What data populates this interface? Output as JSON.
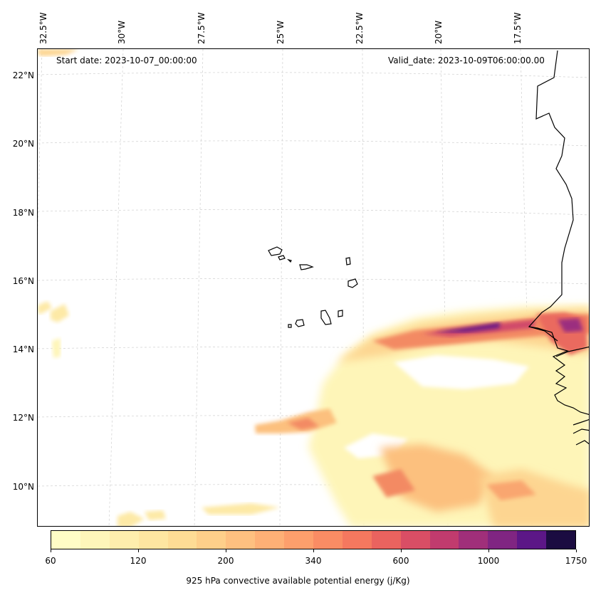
{
  "map": {
    "start_date": "Start date: 2023-10-07_00:00:00",
    "valid_date": "Valid_date: 2023-10-09T06:00:00.00",
    "lon_labels": [
      "32.5°W",
      "30°W",
      "27.5°W",
      "25°W",
      "22.5°W",
      "20°W",
      "17.5°W"
    ],
    "lat_labels": [
      "22°N",
      "20°N",
      "18°N",
      "16°N",
      "14°N",
      "12°N",
      "10°N"
    ],
    "field_colors": [
      "#fef5b8",
      "#fde9a6",
      "#fdd591",
      "#fcc07e",
      "#f9a670",
      "#f38a63",
      "#ea6a5e",
      "#d04a6a",
      "#9b2f7f",
      "#6b1d86"
    ]
  },
  "colorbar": {
    "label": "925 hPa convective available potential energy (j/Kg)",
    "ticks": [
      "60",
      "120",
      "200",
      "340",
      "600",
      "1000",
      "1750"
    ],
    "colors": [
      "#fffdc6",
      "#fef6ba",
      "#feeead",
      "#fee6a1",
      "#fedc95",
      "#fecf8a",
      "#fec080",
      "#feb076",
      "#fd9f6c",
      "#fa8c64",
      "#f5785f",
      "#ea635f",
      "#d94e65",
      "#c13b6e",
      "#a02f7a",
      "#802582",
      "#5c1787",
      "#1b0c41"
    ]
  }
}
